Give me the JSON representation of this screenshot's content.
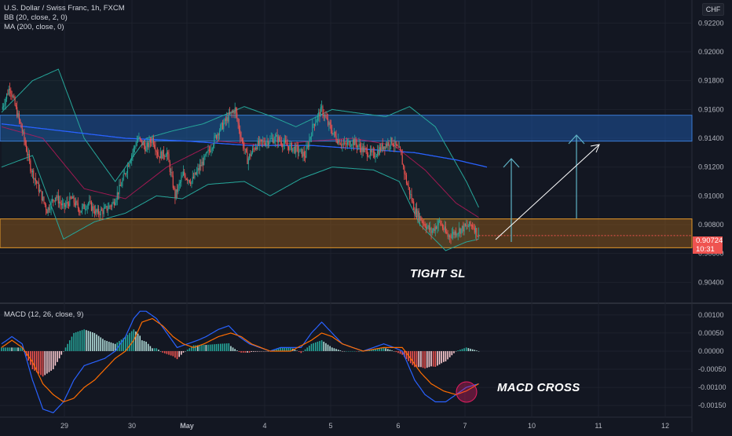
{
  "legend": {
    "symbol": "U.S. Dollar / Swiss Franc, 1h, FXCM",
    "bb": "BB (20, close, 2, 0)",
    "ma": "MA (200, close, 0)",
    "macd": "MACD (12, 26, close, 9)"
  },
  "currency_badge": "CHF",
  "last_price": {
    "value": "0.90724",
    "countdown": "10:31"
  },
  "annotations": {
    "tight_sl": "TIGHT SL",
    "macd_cross": "MACD CROSS"
  },
  "colors": {
    "background": "#131722",
    "up": "#26a69a",
    "down": "#ef5350",
    "bb": "#26a69a",
    "ma200": "#2962ff",
    "resistance_zone": "#1e53a0",
    "support_zone": "#a0621a",
    "macd_line": "#2962ff",
    "signal_line": "#ff6d00",
    "arrow": "#5fb3c6"
  },
  "chart_data": [
    {
      "type": "candlestick",
      "title": "U.S. Dollar / Swiss Franc, 1h, FXCM",
      "x_ticks": [
        "29",
        "30",
        "May",
        "4",
        "5",
        "6",
        "7",
        "10",
        "11",
        "12"
      ],
      "y_ticks": [
        "0.92200",
        "0.92000",
        "0.91800",
        "0.91600",
        "0.91400",
        "0.91200",
        "0.91000",
        "0.90800",
        "0.90600",
        "0.90400"
      ],
      "ylim": [
        0.9026,
        0.9236
      ],
      "resistance_zone": [
        0.9138,
        0.9156
      ],
      "support_zone": [
        0.9064,
        0.9084
      ],
      "ohlc_anchor_closes": [
        [
          0,
          0.916
        ],
        [
          8,
          0.9176
        ],
        [
          14,
          0.916
        ],
        [
          20,
          0.9145
        ],
        [
          28,
          0.912
        ],
        [
          36,
          0.9105
        ],
        [
          44,
          0.909
        ],
        [
          52,
          0.91
        ],
        [
          60,
          0.9092
        ],
        [
          68,
          0.9098
        ],
        [
          76,
          0.909
        ],
        [
          84,
          0.9095
        ],
        [
          92,
          0.9088
        ],
        [
          100,
          0.909
        ],
        [
          108,
          0.9095
        ],
        [
          116,
          0.9108
        ],
        [
          124,
          0.9125
        ],
        [
          132,
          0.914
        ],
        [
          140,
          0.9133
        ],
        [
          146,
          0.914
        ],
        [
          152,
          0.9128
        ],
        [
          160,
          0.913
        ],
        [
          168,
          0.91
        ],
        [
          176,
          0.9115
        ],
        [
          184,
          0.911
        ],
        [
          192,
          0.912
        ],
        [
          200,
          0.913
        ],
        [
          210,
          0.9145
        ],
        [
          220,
          0.9155
        ],
        [
          226,
          0.916
        ],
        [
          232,
          0.914
        ],
        [
          238,
          0.9125
        ],
        [
          246,
          0.9135
        ],
        [
          256,
          0.9138
        ],
        [
          266,
          0.914
        ],
        [
          276,
          0.9135
        ],
        [
          286,
          0.9132
        ],
        [
          294,
          0.9128
        ],
        [
          302,
          0.915
        ],
        [
          310,
          0.916
        ],
        [
          316,
          0.915
        ],
        [
          324,
          0.914
        ],
        [
          332,
          0.9135
        ],
        [
          340,
          0.9138
        ],
        [
          350,
          0.9132
        ],
        [
          360,
          0.9128
        ],
        [
          370,
          0.9135
        ],
        [
          378,
          0.9138
        ],
        [
          386,
          0.913
        ],
        [
          392,
          0.911
        ],
        [
          400,
          0.909
        ],
        [
          408,
          0.9082
        ],
        [
          416,
          0.9075
        ],
        [
          424,
          0.9082
        ],
        [
          432,
          0.9072
        ],
        [
          440,
          0.9075
        ],
        [
          448,
          0.9078
        ],
        [
          456,
          0.908
        ],
        [
          462,
          0.9072
        ]
      ],
      "bb_upper": [
        [
          0,
          0.9158
        ],
        [
          30,
          0.918
        ],
        [
          55,
          0.9188
        ],
        [
          80,
          0.914
        ],
        [
          110,
          0.911
        ],
        [
          140,
          0.914
        ],
        [
          165,
          0.9145
        ],
        [
          195,
          0.915
        ],
        [
          235,
          0.9162
        ],
        [
          262,
          0.9155
        ],
        [
          285,
          0.9148
        ],
        [
          320,
          0.916
        ],
        [
          340,
          0.9158
        ],
        [
          372,
          0.9155
        ],
        [
          395,
          0.9162
        ],
        [
          420,
          0.9148
        ],
        [
          450,
          0.911
        ],
        [
          462,
          0.9092
        ]
      ],
      "bb_lower": [
        [
          0,
          0.912
        ],
        [
          30,
          0.9128
        ],
        [
          60,
          0.907
        ],
        [
          90,
          0.9082
        ],
        [
          120,
          0.9088
        ],
        [
          150,
          0.91
        ],
        [
          175,
          0.9098
        ],
        [
          200,
          0.9108
        ],
        [
          235,
          0.911
        ],
        [
          260,
          0.91
        ],
        [
          290,
          0.9112
        ],
        [
          320,
          0.912
        ],
        [
          360,
          0.9118
        ],
        [
          385,
          0.911
        ],
        [
          405,
          0.908
        ],
        [
          430,
          0.9062
        ],
        [
          450,
          0.9068
        ],
        [
          462,
          0.907
        ]
      ],
      "bb_mid": [
        [
          0,
          0.9148
        ],
        [
          40,
          0.914
        ],
        [
          80,
          0.9105
        ],
        [
          120,
          0.9098
        ],
        [
          160,
          0.912
        ],
        [
          210,
          0.9138
        ],
        [
          260,
          0.9135
        ],
        [
          300,
          0.9138
        ],
        [
          340,
          0.914
        ],
        [
          380,
          0.9135
        ],
        [
          410,
          0.9118
        ],
        [
          440,
          0.9095
        ],
        [
          462,
          0.9085
        ]
      ],
      "ma200": [
        [
          0,
          0.915
        ],
        [
          60,
          0.9145
        ],
        [
          120,
          0.914
        ],
        [
          180,
          0.9138
        ],
        [
          240,
          0.9135
        ],
        [
          300,
          0.9135
        ],
        [
          360,
          0.9132
        ],
        [
          400,
          0.913
        ],
        [
          440,
          0.9125
        ],
        [
          470,
          0.912
        ]
      ]
    },
    {
      "type": "histogram+line",
      "title": "MACD (12, 26, close, 9)",
      "y_ticks": [
        "0.00100",
        "0.00050",
        "0.00000",
        "-0.00050",
        "-0.00100",
        "-0.00150"
      ],
      "ylim": [
        -0.0018,
        0.0013
      ],
      "macd": [
        [
          0,
          0.0002
        ],
        [
          10,
          0.0004
        ],
        [
          20,
          0.0002
        ],
        [
          30,
          -0.0008
        ],
        [
          40,
          -0.0016
        ],
        [
          50,
          -0.0017
        ],
        [
          60,
          -0.0014
        ],
        [
          70,
          -0.0008
        ],
        [
          80,
          -0.0004
        ],
        [
          90,
          -0.0003
        ],
        [
          100,
          -0.0002
        ],
        [
          110,
          0.0
        ],
        [
          120,
          0.0004
        ],
        [
          128,
          0.0009
        ],
        [
          134,
          0.0011
        ],
        [
          140,
          0.0011
        ],
        [
          150,
          0.0009
        ],
        [
          160,
          0.0005
        ],
        [
          170,
          0.0001
        ],
        [
          180,
          0.0002
        ],
        [
          190,
          0.0003
        ],
        [
          198,
          0.0004
        ],
        [
          210,
          0.0006
        ],
        [
          220,
          0.0007
        ],
        [
          230,
          0.0004
        ],
        [
          240,
          0.0002
        ],
        [
          250,
          0.0001
        ],
        [
          260,
          0.0
        ],
        [
          270,
          0.0001
        ],
        [
          280,
          0.0001
        ],
        [
          290,
          0.0001
        ],
        [
          300,
          0.0005
        ],
        [
          310,
          0.0008
        ],
        [
          320,
          0.0005
        ],
        [
          330,
          0.0002
        ],
        [
          340,
          0.0001
        ],
        [
          350,
          0.0
        ],
        [
          360,
          0.0001
        ],
        [
          370,
          0.0002
        ],
        [
          380,
          0.0001
        ],
        [
          388,
          0.0
        ],
        [
          394,
          -0.0004
        ],
        [
          400,
          -0.0008
        ],
        [
          410,
          -0.0012
        ],
        [
          420,
          -0.0014
        ],
        [
          430,
          -0.0014
        ],
        [
          440,
          -0.0012
        ],
        [
          450,
          -0.001
        ],
        [
          462,
          -0.0009
        ]
      ],
      "signal": [
        [
          0,
          0.0001
        ],
        [
          10,
          0.0003
        ],
        [
          20,
          0.0001
        ],
        [
          30,
          -0.0003
        ],
        [
          40,
          -0.0009
        ],
        [
          50,
          -0.0012
        ],
        [
          60,
          -0.0014
        ],
        [
          70,
          -0.0013
        ],
        [
          80,
          -0.001
        ],
        [
          90,
          -0.0008
        ],
        [
          100,
          -0.0005
        ],
        [
          110,
          -0.0002
        ],
        [
          120,
          0.0
        ],
        [
          128,
          0.0003
        ],
        [
          136,
          0.0008
        ],
        [
          146,
          0.0009
        ],
        [
          156,
          0.0007
        ],
        [
          166,
          0.0004
        ],
        [
          176,
          0.0002
        ],
        [
          186,
          0.0001
        ],
        [
          196,
          0.0002
        ],
        [
          210,
          0.0004
        ],
        [
          222,
          0.0005
        ],
        [
          232,
          0.0004
        ],
        [
          242,
          0.0002
        ],
        [
          260,
          0.0
        ],
        [
          280,
          0.0
        ],
        [
          300,
          0.0003
        ],
        [
          310,
          0.0005
        ],
        [
          320,
          0.0004
        ],
        [
          330,
          0.0002
        ],
        [
          350,
          0.0
        ],
        [
          370,
          0.0001
        ],
        [
          388,
          0.0001
        ],
        [
          396,
          -0.0002
        ],
        [
          406,
          -0.0006
        ],
        [
          416,
          -0.0009
        ],
        [
          428,
          -0.0011
        ],
        [
          440,
          -0.0012
        ],
        [
          450,
          -0.0011
        ],
        [
          462,
          -0.0009
        ]
      ]
    }
  ]
}
